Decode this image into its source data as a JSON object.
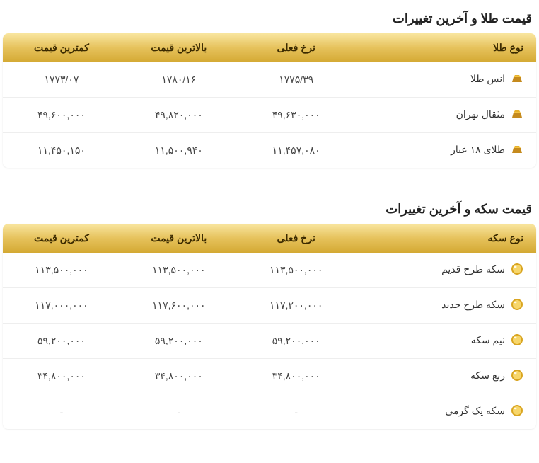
{
  "colors": {
    "header_grad_top": "#f9e6a0",
    "header_grad_mid": "#e6c25c",
    "header_grad_bot": "#d4a933",
    "text_header": "#3b2a00",
    "text_body": "#444444",
    "row_border": "#eeeeee",
    "gold_ingot_fill": "#c58a1d",
    "gold_ingot_hi": "#f4c443",
    "coin_outer": "#d9a521",
    "coin_inner": "#f7d66a",
    "coin_shine": "#ffffff"
  },
  "sections": [
    {
      "title": "قیمت طلا و آخرین تغییرات",
      "icon": "gold",
      "headers": {
        "name": "نوع طلا",
        "current": "نرخ فعلی",
        "high": "بالاترین قیمت",
        "low": "کمترین قیمت"
      },
      "rows": [
        {
          "name": "انس طلا",
          "current": "۱۷۷۵/۳۹",
          "high": "۱۷۸۰/۱۶",
          "low": "۱۷۷۳/۰۷"
        },
        {
          "name": "مثقال تهران",
          "current": "۴۹,۶۳۰,۰۰۰",
          "high": "۴۹,۸۲۰,۰۰۰",
          "low": "۴۹,۶۰۰,۰۰۰"
        },
        {
          "name": "طلای ۱۸ عیار",
          "current": "۱۱,۴۵۷,۰۸۰",
          "high": "۱۱,۵۰۰,۹۴۰",
          "low": "۱۱,۴۵۰,۱۵۰"
        }
      ]
    },
    {
      "title": "قیمت سکه و آخرین تغییرات",
      "icon": "coin",
      "headers": {
        "name": "نوع سکه",
        "current": "نرخ فعلی",
        "high": "بالاترین قیمت",
        "low": "کمترین قیمت"
      },
      "rows": [
        {
          "name": "سکه طرح قدیم",
          "current": "۱۱۳,۵۰۰,۰۰۰",
          "high": "۱۱۳,۵۰۰,۰۰۰",
          "low": "۱۱۳,۵۰۰,۰۰۰"
        },
        {
          "name": "سکه طرح جدید",
          "current": "۱۱۷,۲۰۰,۰۰۰",
          "high": "۱۱۷,۶۰۰,۰۰۰",
          "low": "۱۱۷,۰۰۰,۰۰۰"
        },
        {
          "name": "نیم سکه",
          "current": "۵۹,۲۰۰,۰۰۰",
          "high": "۵۹,۲۰۰,۰۰۰",
          "low": "۵۹,۲۰۰,۰۰۰"
        },
        {
          "name": "ربع سکه",
          "current": "۳۴,۸۰۰,۰۰۰",
          "high": "۳۴,۸۰۰,۰۰۰",
          "low": "۳۴,۸۰۰,۰۰۰"
        },
        {
          "name": "سکه یک گرمی",
          "current": "-",
          "high": "-",
          "low": "-"
        }
      ]
    }
  ]
}
